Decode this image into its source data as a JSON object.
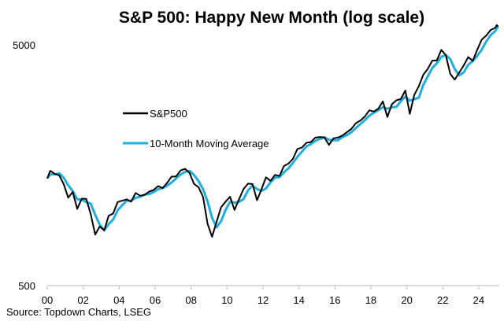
{
  "chart_data": {
    "type": "line",
    "title": "S&P 500: Happy New Month (log scale)",
    "source": "Source: Topdown Charts, LSEG",
    "y_scale": "log",
    "ylim": [
      500,
      6500
    ],
    "y_ticks": [
      {
        "value": 500,
        "label": "500"
      },
      {
        "value": 5000,
        "label": "5000"
      }
    ],
    "x_ticks": [
      {
        "year": 2000,
        "label": "00"
      },
      {
        "year": 2002,
        "label": "02"
      },
      {
        "year": 2004,
        "label": "04"
      },
      {
        "year": 2006,
        "label": "06"
      },
      {
        "year": 2008,
        "label": "08"
      },
      {
        "year": 2010,
        "label": "10"
      },
      {
        "year": 2012,
        "label": "12"
      },
      {
        "year": 2014,
        "label": "14"
      },
      {
        "year": 2016,
        "label": "16"
      },
      {
        "year": 2018,
        "label": "18"
      },
      {
        "year": 2020,
        "label": "20"
      },
      {
        "year": 2022,
        "label": "22"
      },
      {
        "year": 2024,
        "label": "24"
      }
    ],
    "xlim": [
      "2000-01",
      "2025-02"
    ],
    "grid": false,
    "legend_placement": "upper-left",
    "x": [
      "2000-01",
      "2000-03",
      "2000-06",
      "2000-09",
      "2000-12",
      "2001-03",
      "2001-06",
      "2001-09",
      "2001-12",
      "2002-03",
      "2002-06",
      "2002-09",
      "2002-12",
      "2003-03",
      "2003-06",
      "2003-09",
      "2003-12",
      "2004-03",
      "2004-06",
      "2004-09",
      "2004-12",
      "2005-03",
      "2005-06",
      "2005-09",
      "2005-12",
      "2006-03",
      "2006-06",
      "2006-09",
      "2006-12",
      "2007-03",
      "2007-06",
      "2007-09",
      "2007-12",
      "2008-03",
      "2008-06",
      "2008-09",
      "2008-12",
      "2009-03",
      "2009-06",
      "2009-09",
      "2009-12",
      "2010-03",
      "2010-06",
      "2010-09",
      "2010-12",
      "2011-03",
      "2011-06",
      "2011-09",
      "2011-12",
      "2012-03",
      "2012-06",
      "2012-09",
      "2012-12",
      "2013-03",
      "2013-06",
      "2013-09",
      "2013-12",
      "2014-03",
      "2014-06",
      "2014-09",
      "2014-12",
      "2015-03",
      "2015-06",
      "2015-09",
      "2015-12",
      "2016-03",
      "2016-06",
      "2016-09",
      "2016-12",
      "2017-03",
      "2017-06",
      "2017-09",
      "2017-12",
      "2018-03",
      "2018-06",
      "2018-09",
      "2018-12",
      "2019-03",
      "2019-06",
      "2019-09",
      "2019-12",
      "2020-03",
      "2020-06",
      "2020-09",
      "2020-12",
      "2021-03",
      "2021-06",
      "2021-09",
      "2021-12",
      "2022-03",
      "2022-06",
      "2022-09",
      "2022-12",
      "2023-03",
      "2023-06",
      "2023-09",
      "2023-12",
      "2024-03",
      "2024-06",
      "2024-09",
      "2024-12",
      "2025-01",
      "2025-02"
    ],
    "series": [
      {
        "name": "S&P500",
        "color": "#000000",
        "values": [
          1394,
          1499,
          1455,
          1436,
          1320,
          1160,
          1224,
          1041,
          1148,
          1147,
          990,
          815,
          880,
          848,
          975,
          996,
          1112,
          1126,
          1141,
          1115,
          1212,
          1181,
          1191,
          1229,
          1248,
          1295,
          1270,
          1336,
          1418,
          1421,
          1503,
          1527,
          1468,
          1323,
          1280,
          1166,
          903,
          798,
          919,
          1057,
          1115,
          1169,
          1031,
          1141,
          1258,
          1326,
          1321,
          1131,
          1258,
          1408,
          1362,
          1441,
          1426,
          1569,
          1606,
          1682,
          1848,
          1872,
          1960,
          1972,
          2059,
          2068,
          2063,
          1920,
          2044,
          2060,
          2099,
          2168,
          2239,
          2363,
          2423,
          2519,
          2674,
          2641,
          2718,
          2914,
          2507,
          2834,
          2942,
          2977,
          3231,
          2585,
          3100,
          3363,
          3756,
          3973,
          4298,
          4308,
          4766,
          4530,
          3785,
          3586,
          3840,
          4109,
          4450,
          4288,
          4770,
          5254,
          5460,
          5762,
          5882,
          6041,
          5955
        ]
      },
      {
        "name": "10-Month Moving Average",
        "color": "#1eaee0",
        "values": [
          1394,
          1447,
          1449,
          1463,
          1404,
          1305,
          1235,
          1142,
          1138,
          1112,
          1095,
          984,
          895,
          848,
          901,
          940,
          1028,
          1078,
          1126,
          1127,
          1156,
          1169,
          1195,
          1200,
          1223,
          1257,
          1271,
          1300,
          1341,
          1392,
          1447,
          1484,
          1499,
          1439,
          1357,
          1256,
          1116,
          956,
          873,
          925,
          1030,
          1114,
          1105,
          1114,
          1143,
          1242,
          1302,
          1259,
          1237,
          1266,
          1343,
          1404,
          1410,
          1479,
          1534,
          1619,
          1712,
          1801,
          1893,
          1935,
          1997,
          2033,
          2063,
          2017,
          2009,
          2008,
          2068,
          2109,
          2169,
          2257,
          2342,
          2435,
          2539,
          2611,
          2678,
          2758,
          2713,
          2752,
          2761,
          2918,
          3050,
          2931,
          2972,
          3016,
          3406,
          3697,
          4009,
          4193,
          4457,
          4535,
          4360,
          3967,
          3737,
          3845,
          4133,
          4282,
          4503,
          4771,
          5161,
          5492,
          5701,
          5850,
          5940
        ]
      }
    ]
  }
}
